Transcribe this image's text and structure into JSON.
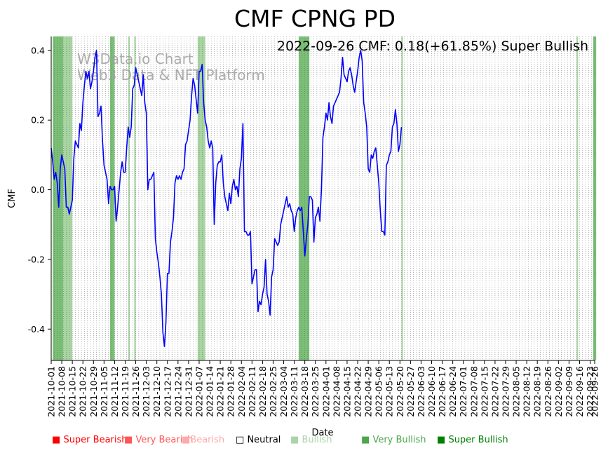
{
  "chart_data": {
    "type": "line",
    "title": "CMF CPNG PD",
    "annotation": "2022-09-26 CMF: 0.18(+61.85%) Super Bullish",
    "watermark": [
      "W3Data.io Chart",
      "Web3 Data & NFT Platform"
    ],
    "xlabel": "Date",
    "ylabel": "CMF",
    "ylim": [
      -0.49,
      0.44
    ],
    "yticks": [
      -0.4,
      -0.2,
      0.0,
      0.2,
      0.4
    ],
    "date_start": "2021-10-01",
    "date_end": "2022-09-26",
    "xtick_labels": [
      "2021-10-01",
      "2021-10-08",
      "2021-10-15",
      "2021-10-22",
      "2021-10-29",
      "2021-11-05",
      "2021-11-12",
      "2021-11-19",
      "2021-11-26",
      "2021-12-03",
      "2021-12-10",
      "2021-12-17",
      "2021-12-24",
      "2021-12-31",
      "2022-01-07",
      "2022-01-14",
      "2022-01-21",
      "2022-01-28",
      "2022-02-04",
      "2022-02-11",
      "2022-02-18",
      "2022-02-25",
      "2022-03-04",
      "2022-03-11",
      "2022-03-18",
      "2022-03-25",
      "2022-04-01",
      "2022-04-08",
      "2022-04-15",
      "2022-04-22",
      "2022-04-29",
      "2022-05-06",
      "2022-05-13",
      "2022-05-20",
      "2022-05-27",
      "2022-06-03",
      "2022-06-10",
      "2022-06-17",
      "2022-06-24",
      "2022-07-01",
      "2022-07-08",
      "2022-07-15",
      "2022-07-22",
      "2022-07-29",
      "2022-08-05",
      "2022-08-12",
      "2022-08-19",
      "2022-08-26",
      "2022-09-02",
      "2022-09-09",
      "2022-09-16",
      "2022-09-23",
      "2022-09-26"
    ],
    "series": [
      {
        "color": "#0000ff",
        "points": [
          [
            "2021-10-01",
            0.12
          ],
          [
            "2021-10-02",
            0.08
          ],
          [
            "2021-10-03",
            0.03
          ],
          [
            "2021-10-04",
            0.05
          ],
          [
            "2021-10-05",
            0.02
          ],
          [
            "2021-10-06",
            -0.05
          ],
          [
            "2021-10-07",
            0.06
          ],
          [
            "2021-10-08",
            0.1
          ],
          [
            "2021-10-09",
            0.08
          ],
          [
            "2021-10-10",
            0.06
          ],
          [
            "2021-10-11",
            -0.05
          ],
          [
            "2021-10-12",
            -0.05
          ],
          [
            "2021-10-13",
            -0.07
          ],
          [
            "2021-10-14",
            -0.05
          ],
          [
            "2021-10-15",
            -0.03
          ],
          [
            "2021-10-16",
            0.09
          ],
          [
            "2021-10-17",
            0.14
          ],
          [
            "2021-10-18",
            0.13
          ],
          [
            "2021-10-19",
            0.12
          ],
          [
            "2021-10-20",
            0.19
          ],
          [
            "2021-10-21",
            0.17
          ],
          [
            "2021-10-22",
            0.25
          ],
          [
            "2021-10-23",
            0.3
          ],
          [
            "2021-10-24",
            0.34
          ],
          [
            "2021-10-25",
            0.32
          ],
          [
            "2021-10-26",
            0.34
          ],
          [
            "2021-10-27",
            0.29
          ],
          [
            "2021-10-28",
            0.31
          ],
          [
            "2021-10-29",
            0.34
          ],
          [
            "2021-10-30",
            0.38
          ],
          [
            "2021-10-31",
            0.4
          ],
          [
            "2021-11-01",
            0.21
          ],
          [
            "2021-11-02",
            0.22
          ],
          [
            "2021-11-03",
            0.24
          ],
          [
            "2021-11-04",
            0.14
          ],
          [
            "2021-11-05",
            0.07
          ],
          [
            "2021-11-06",
            0.05
          ],
          [
            "2021-11-07",
            0.03
          ],
          [
            "2021-11-08",
            -0.04
          ],
          [
            "2021-11-09",
            0.01
          ],
          [
            "2021-11-10",
            0.0
          ],
          [
            "2021-11-11",
            0.0
          ],
          [
            "2021-11-12",
            0.01
          ],
          [
            "2021-11-13",
            -0.09
          ],
          [
            "2021-11-14",
            -0.05
          ],
          [
            "2021-11-15",
            0.0
          ],
          [
            "2021-11-16",
            0.05
          ],
          [
            "2021-11-17",
            0.08
          ],
          [
            "2021-11-18",
            0.05
          ],
          [
            "2021-11-19",
            0.05
          ],
          [
            "2021-11-20",
            0.12
          ],
          [
            "2021-11-21",
            0.18
          ],
          [
            "2021-11-22",
            0.15
          ],
          [
            "2021-11-23",
            0.18
          ],
          [
            "2021-11-24",
            0.29
          ],
          [
            "2021-11-25",
            0.3
          ],
          [
            "2021-11-26",
            0.35
          ],
          [
            "2021-11-27",
            0.33
          ],
          [
            "2021-11-28",
            0.31
          ],
          [
            "2021-11-29",
            0.29
          ],
          [
            "2021-11-30",
            0.27
          ],
          [
            "2021-12-01",
            0.33
          ],
          [
            "2021-12-02",
            0.25
          ],
          [
            "2021-12-03",
            0.22
          ],
          [
            "2021-12-04",
            0.0
          ],
          [
            "2021-12-05",
            0.03
          ],
          [
            "2021-12-06",
            0.03
          ],
          [
            "2021-12-07",
            0.04
          ],
          [
            "2021-12-08",
            0.05
          ],
          [
            "2021-12-09",
            -0.14
          ],
          [
            "2021-12-10",
            -0.18
          ],
          [
            "2021-12-11",
            -0.21
          ],
          [
            "2021-12-12",
            -0.25
          ],
          [
            "2021-12-13",
            -0.3
          ],
          [
            "2021-12-14",
            -0.41
          ],
          [
            "2021-12-15",
            -0.45
          ],
          [
            "2021-12-16",
            -0.38
          ],
          [
            "2021-12-17",
            -0.24
          ],
          [
            "2021-12-18",
            -0.24
          ],
          [
            "2021-12-19",
            -0.15
          ],
          [
            "2021-12-20",
            -0.12
          ],
          [
            "2021-12-21",
            -0.08
          ],
          [
            "2021-12-22",
            0.02
          ],
          [
            "2021-12-23",
            0.04
          ],
          [
            "2021-12-24",
            0.03
          ],
          [
            "2021-12-25",
            0.04
          ],
          [
            "2021-12-26",
            0.03
          ],
          [
            "2021-12-27",
            0.05
          ],
          [
            "2021-12-28",
            0.06
          ],
          [
            "2021-12-29",
            0.13
          ],
          [
            "2021-12-30",
            0.14
          ],
          [
            "2021-12-31",
            0.17
          ],
          [
            "2022-01-01",
            0.2
          ],
          [
            "2022-01-02",
            0.27
          ],
          [
            "2022-01-03",
            0.32
          ],
          [
            "2022-01-04",
            0.3
          ],
          [
            "2022-01-05",
            0.26
          ],
          [
            "2022-01-06",
            0.22
          ],
          [
            "2022-01-07",
            0.34
          ],
          [
            "2022-01-08",
            0.34
          ],
          [
            "2022-01-09",
            0.36
          ],
          [
            "2022-01-10",
            0.25
          ],
          [
            "2022-01-11",
            0.2
          ],
          [
            "2022-01-12",
            0.18
          ],
          [
            "2022-01-13",
            0.14
          ],
          [
            "2022-01-14",
            0.12
          ],
          [
            "2022-01-15",
            0.14
          ],
          [
            "2022-01-16",
            0.12
          ],
          [
            "2022-01-17",
            -0.1
          ],
          [
            "2022-01-18",
            0.02
          ],
          [
            "2022-01-19",
            0.07
          ],
          [
            "2022-01-20",
            0.08
          ],
          [
            "2022-01-21",
            0.08
          ],
          [
            "2022-01-22",
            0.1
          ],
          [
            "2022-01-23",
            0.02
          ],
          [
            "2022-01-24",
            -0.02
          ],
          [
            "2022-01-25",
            -0.04
          ],
          [
            "2022-01-26",
            -0.06
          ],
          [
            "2022-01-27",
            -0.01
          ],
          [
            "2022-01-28",
            -0.04
          ],
          [
            "2022-01-29",
            0.01
          ],
          [
            "2022-01-30",
            0.03
          ],
          [
            "2022-01-31",
            0.0
          ],
          [
            "2022-02-01",
            0.01
          ],
          [
            "2022-02-02",
            -0.02
          ],
          [
            "2022-02-03",
            0.06
          ],
          [
            "2022-02-04",
            0.09
          ],
          [
            "2022-02-05",
            0.19
          ],
          [
            "2022-02-06",
            -0.12
          ],
          [
            "2022-02-07",
            -0.12
          ],
          [
            "2022-02-08",
            -0.13
          ],
          [
            "2022-02-09",
            -0.13
          ],
          [
            "2022-02-10",
            -0.12
          ],
          [
            "2022-02-11",
            -0.27
          ],
          [
            "2022-02-12",
            -0.25
          ],
          [
            "2022-02-13",
            -0.23
          ],
          [
            "2022-02-14",
            -0.23
          ],
          [
            "2022-02-15",
            -0.35
          ],
          [
            "2022-02-16",
            -0.32
          ],
          [
            "2022-02-17",
            -0.33
          ],
          [
            "2022-02-18",
            -0.3
          ],
          [
            "2022-02-19",
            -0.28
          ],
          [
            "2022-02-20",
            -0.2
          ],
          [
            "2022-02-21",
            -0.3
          ],
          [
            "2022-02-22",
            -0.32
          ],
          [
            "2022-02-23",
            -0.36
          ],
          [
            "2022-02-24",
            -0.25
          ],
          [
            "2022-02-25",
            -0.23
          ],
          [
            "2022-02-26",
            -0.14
          ],
          [
            "2022-02-27",
            -0.15
          ],
          [
            "2022-02-28",
            -0.16
          ],
          [
            "2022-03-01",
            -0.15
          ],
          [
            "2022-03-02",
            -0.1
          ],
          [
            "2022-03-03",
            -0.08
          ],
          [
            "2022-03-04",
            -0.06
          ],
          [
            "2022-03-05",
            -0.04
          ],
          [
            "2022-03-06",
            -0.02
          ],
          [
            "2022-03-07",
            -0.05
          ],
          [
            "2022-03-08",
            -0.04
          ],
          [
            "2022-03-09",
            -0.06
          ],
          [
            "2022-03-10",
            -0.07
          ],
          [
            "2022-03-11",
            -0.12
          ],
          [
            "2022-03-12",
            -0.08
          ],
          [
            "2022-03-13",
            -0.06
          ],
          [
            "2022-03-14",
            -0.05
          ],
          [
            "2022-03-15",
            -0.06
          ],
          [
            "2022-03-16",
            -0.05
          ],
          [
            "2022-03-17",
            -0.12
          ],
          [
            "2022-03-18",
            -0.19
          ],
          [
            "2022-03-19",
            -0.14
          ],
          [
            "2022-03-20",
            -0.1
          ],
          [
            "2022-03-21",
            -0.02
          ],
          [
            "2022-03-22",
            -0.02
          ],
          [
            "2022-03-23",
            -0.03
          ],
          [
            "2022-03-24",
            -0.15
          ],
          [
            "2022-03-25",
            -0.08
          ],
          [
            "2022-03-26",
            -0.07
          ],
          [
            "2022-03-27",
            -0.05
          ],
          [
            "2022-03-28",
            -0.09
          ],
          [
            "2022-03-29",
            0.0
          ],
          [
            "2022-03-30",
            0.15
          ],
          [
            "2022-03-31",
            0.18
          ],
          [
            "2022-04-01",
            0.22
          ],
          [
            "2022-04-02",
            0.2
          ],
          [
            "2022-04-03",
            0.25
          ],
          [
            "2022-04-04",
            0.21
          ],
          [
            "2022-04-05",
            0.19
          ],
          [
            "2022-04-06",
            0.24
          ],
          [
            "2022-04-07",
            0.25
          ],
          [
            "2022-04-08",
            0.26
          ],
          [
            "2022-04-09",
            0.27
          ],
          [
            "2022-04-10",
            0.28
          ],
          [
            "2022-04-11",
            0.32
          ],
          [
            "2022-04-12",
            0.38
          ],
          [
            "2022-04-13",
            0.33
          ],
          [
            "2022-04-14",
            0.32
          ],
          [
            "2022-04-15",
            0.31
          ],
          [
            "2022-04-16",
            0.34
          ],
          [
            "2022-04-17",
            0.35
          ],
          [
            "2022-04-18",
            0.33
          ],
          [
            "2022-04-19",
            0.3
          ],
          [
            "2022-04-20",
            0.28
          ],
          [
            "2022-04-21",
            0.31
          ],
          [
            "2022-04-22",
            0.34
          ],
          [
            "2022-04-23",
            0.38
          ],
          [
            "2022-04-24",
            0.4
          ],
          [
            "2022-04-25",
            0.37
          ],
          [
            "2022-04-26",
            0.25
          ],
          [
            "2022-04-27",
            0.22
          ],
          [
            "2022-04-28",
            0.18
          ],
          [
            "2022-04-29",
            0.06
          ],
          [
            "2022-04-30",
            0.05
          ],
          [
            "2022-05-01",
            0.1
          ],
          [
            "2022-05-02",
            0.09
          ],
          [
            "2022-05-03",
            0.11
          ],
          [
            "2022-05-04",
            0.12
          ],
          [
            "2022-05-05",
            0.07
          ],
          [
            "2022-05-06",
            0.02
          ],
          [
            "2022-05-07",
            -0.06
          ],
          [
            "2022-05-08",
            -0.12
          ],
          [
            "2022-05-09",
            -0.12
          ],
          [
            "2022-05-10",
            -0.13
          ],
          [
            "2022-05-11",
            0.07
          ],
          [
            "2022-05-12",
            0.08
          ],
          [
            "2022-05-13",
            0.1
          ],
          [
            "2022-05-14",
            0.11
          ],
          [
            "2022-05-15",
            0.18
          ],
          [
            "2022-05-16",
            0.19
          ],
          [
            "2022-05-17",
            0.23
          ],
          [
            "2022-05-18",
            0.19
          ],
          [
            "2022-05-19",
            0.11
          ],
          [
            "2022-05-20",
            0.13
          ],
          [
            "2022-05-21",
            0.18
          ]
        ]
      }
    ],
    "bands": [
      {
        "start": "2021-10-02",
        "end": "2021-10-09",
        "level": "very_bullish"
      },
      {
        "start": "2021-10-09",
        "end": "2021-10-15",
        "level": "bullish"
      },
      {
        "start": "2021-11-09",
        "end": "2021-11-12",
        "level": "very_bullish"
      },
      {
        "start": "2021-11-21",
        "end": "2021-11-22",
        "level": "bullish"
      },
      {
        "start": "2021-11-25",
        "end": "2021-11-26",
        "level": "bullish"
      },
      {
        "start": "2022-01-06",
        "end": "2022-01-11",
        "level": "bullish"
      },
      {
        "start": "2022-03-14",
        "end": "2022-03-21",
        "level": "very_bullish"
      },
      {
        "start": "2022-05-21",
        "end": "2022-05-22",
        "level": "bullish"
      },
      {
        "start": "2022-09-14",
        "end": "2022-09-15",
        "level": "bullish"
      },
      {
        "start": "2022-09-25",
        "end": "2022-09-27",
        "level": "very_bullish"
      }
    ],
    "grid": "vertical-dotted",
    "legend_position": "bottom"
  },
  "legend": [
    {
      "label": "Super Bearish",
      "color": "#ff0000"
    },
    {
      "label": "Very Bearish",
      "color": "#ff5555"
    },
    {
      "label": "Bearish",
      "color": "#ffaaaa"
    },
    {
      "label": "Neutral",
      "color": "#000000"
    },
    {
      "label": "Bullish",
      "color": "#aad4aa"
    },
    {
      "label": "Very Bullish",
      "color": "#4ca64c"
    },
    {
      "label": "Super Bullish",
      "color": "#008000"
    }
  ],
  "colors": {
    "bullish_band": "#a8d5a2",
    "very_bullish_band": "#7bbf77",
    "line": "#0000ff"
  }
}
